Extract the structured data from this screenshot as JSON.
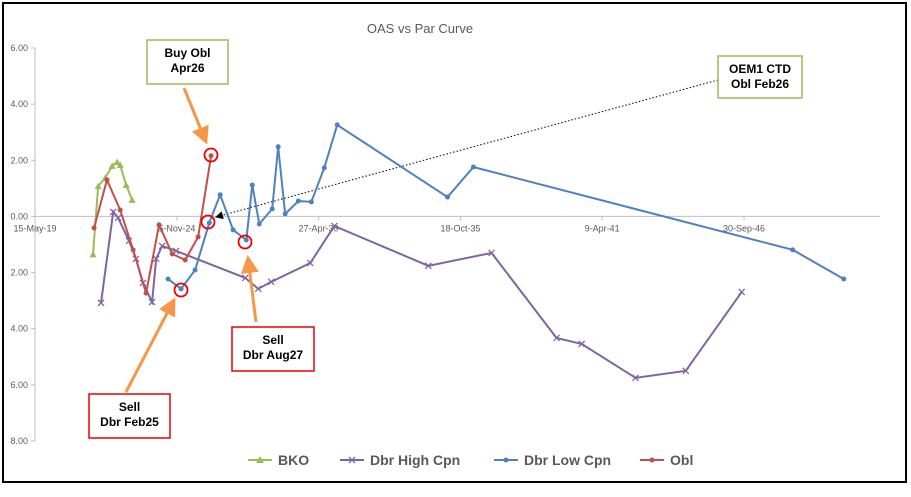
{
  "chart_data": {
    "type": "line",
    "title": "OAS vs Par Curve",
    "xlim": [
      2019.37,
      2052.0
    ],
    "ylim": [
      -8,
      6
    ],
    "xticks": [
      {
        "value": 2019.37,
        "label": "15-May-19"
      },
      {
        "value": 2024.85,
        "label": "5-Nov-24"
      },
      {
        "value": 2030.32,
        "label": "27-Apr-30"
      },
      {
        "value": 2035.8,
        "label": "18-Oct-35"
      },
      {
        "value": 2041.27,
        "label": "9-Apr-41"
      },
      {
        "value": 2046.75,
        "label": "30-Sep-46"
      }
    ],
    "yticks": [
      {
        "value": 6,
        "label": "6.00"
      },
      {
        "value": 4,
        "label": "4.00"
      },
      {
        "value": 2,
        "label": "2.00"
      },
      {
        "value": 0,
        "label": "0.00"
      },
      {
        "value": -2,
        "label": "2.00"
      },
      {
        "value": -4,
        "label": "4.00"
      },
      {
        "value": -6,
        "label": "6.00"
      },
      {
        "value": -8,
        "label": "8.00"
      }
    ],
    "series": [
      {
        "name": "BKO",
        "color": "#9bbb59",
        "marker": "triangle",
        "x": [
          2021.61,
          2021.81,
          2022.08,
          2022.35,
          2022.54,
          2022.66,
          2022.89,
          2023.12
        ],
        "values": [
          -1.35,
          1.08,
          1.37,
          1.8,
          1.94,
          1.83,
          1.12,
          0.59
        ]
      },
      {
        "name": "Dbr High Cpn",
        "color": "#8064a2",
        "marker": "cross",
        "x": [
          2021.92,
          2022.39,
          2022.58,
          2023.0,
          2023.27,
          2023.54,
          2023.89,
          2024.05,
          2024.28,
          2024.82,
          2027.49,
          2027.99,
          2028.49,
          2030.0,
          2030.93,
          2034.56,
          2037.0,
          2039.51,
          2040.48,
          2042.56,
          2044.5,
          2046.66
        ],
        "values": [
          -3.08,
          0.16,
          -0.05,
          -0.87,
          -1.51,
          -2.37,
          -3.05,
          -1.51,
          -1.05,
          -1.23,
          -2.19,
          -2.58,
          -2.33,
          -1.66,
          -0.34,
          -1.76,
          -1.3,
          -4.33,
          -4.54,
          -5.75,
          -5.5,
          -2.69
        ]
      },
      {
        "name": "Dbr Low Cpn",
        "color": "#4f81bd",
        "marker": "dot",
        "x": [
          2024.51,
          2025.01,
          2025.55,
          2026.1,
          2026.52,
          2027.02,
          2027.53,
          2027.76,
          2028.03,
          2028.53,
          2028.76,
          2029.03,
          2029.54,
          2030.04,
          2030.54,
          2031.04,
          2035.3,
          2036.3,
          2048.63,
          2050.6
        ],
        "values": [
          -2.23,
          -2.58,
          -1.91,
          -0.23,
          0.77,
          -0.48,
          -0.84,
          1.12,
          -0.27,
          0.27,
          2.48,
          0.09,
          0.55,
          0.52,
          1.73,
          3.26,
          0.69,
          1.76,
          -1.19,
          -2.23
        ]
      },
      {
        "name": "Obl",
        "color": "#c0504d",
        "marker": "dot",
        "x": [
          2021.65,
          2022.15,
          2022.66,
          2023.16,
          2023.66,
          2024.16,
          2024.67,
          2025.17,
          2025.67,
          2026.17
        ],
        "values": [
          -0.41,
          1.3,
          0.23,
          -1.19,
          -2.73,
          -0.3,
          -1.34,
          -1.55,
          -0.73,
          2.16
        ]
      }
    ],
    "annotations": [
      [
        "Buy Obl",
        "Apr26"
      ],
      [
        "OEM1 CTD",
        "Obl Feb26"
      ],
      [
        "Sell",
        "Dbr Aug27"
      ],
      [
        "Sell",
        "Dbr Feb25"
      ]
    ]
  }
}
